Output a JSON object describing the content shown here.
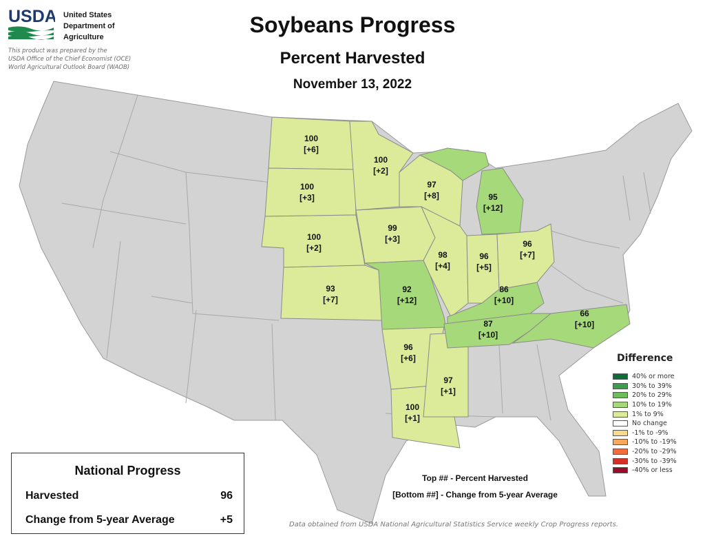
{
  "header": {
    "logo_text": "USDA",
    "agency_lines": [
      "United States",
      "Department of",
      "Agriculture"
    ],
    "prepared_lines": [
      "This product was prepared by the",
      "USDA Office of the Chief Economist (OCE)",
      "World Agricultural Outlook Board (WAOB)"
    ],
    "title": "Soybeans Progress",
    "subtitle": "Percent Harvested",
    "date": "November 13, 2022"
  },
  "states": [
    {
      "name": "ND",
      "top": "100",
      "bottom": "[+6]",
      "color": "#dbeb9a"
    },
    {
      "name": "SD",
      "top": "100",
      "bottom": "[+3]",
      "color": "#dbeb9a"
    },
    {
      "name": "NE",
      "top": "100",
      "bottom": "[+2]",
      "color": "#dbeb9a"
    },
    {
      "name": "KS",
      "top": "93",
      "bottom": "[+7]",
      "color": "#dbeb9a"
    },
    {
      "name": "MN",
      "top": "100",
      "bottom": "[+2]",
      "color": "#dbeb9a"
    },
    {
      "name": "IA",
      "top": "99",
      "bottom": "[+3]",
      "color": "#dbeb9a"
    },
    {
      "name": "MO",
      "top": "92",
      "bottom": "[+12]",
      "color": "#a6d97a"
    },
    {
      "name": "AR",
      "top": "96",
      "bottom": "[+6]",
      "color": "#dbeb9a"
    },
    {
      "name": "LA",
      "top": "100",
      "bottom": "[+1]",
      "color": "#dbeb9a"
    },
    {
      "name": "MS",
      "top": "97",
      "bottom": "[+1]",
      "color": "#dbeb9a"
    },
    {
      "name": "WI",
      "top": "97",
      "bottom": "[+8]",
      "color": "#dbeb9a"
    },
    {
      "name": "IL",
      "top": "98",
      "bottom": "[+4]",
      "color": "#dbeb9a"
    },
    {
      "name": "MI",
      "top": "95",
      "bottom": "[+12]",
      "color": "#a6d97a"
    },
    {
      "name": "IN",
      "top": "96",
      "bottom": "[+5]",
      "color": "#dbeb9a"
    },
    {
      "name": "OH",
      "top": "96",
      "bottom": "[+7]",
      "color": "#dbeb9a"
    },
    {
      "name": "KY",
      "top": "86",
      "bottom": "[+10]",
      "color": "#a6d97a"
    },
    {
      "name": "TN",
      "top": "87",
      "bottom": "[+10]",
      "color": "#a6d97a"
    },
    {
      "name": "NC",
      "top": "66",
      "bottom": "[+10]",
      "color": "#a6d97a"
    }
  ],
  "legend": {
    "title": "Difference",
    "items": [
      {
        "label": "40% or more",
        "color": "#0e6b3a"
      },
      {
        "label": "30% to 39%",
        "color": "#3a9e4c"
      },
      {
        "label": "20% to 29%",
        "color": "#6dbd5c"
      },
      {
        "label": "10% to 19%",
        "color": "#a6d97a"
      },
      {
        "label": "1% to 9%",
        "color": "#dbeb9a"
      },
      {
        "label": "No change",
        "color": "#ffffff"
      },
      {
        "label": "-1% to -9%",
        "color": "#fbd98a"
      },
      {
        "label": "-10% to -19%",
        "color": "#f7a85c"
      },
      {
        "label": "-20% to -29%",
        "color": "#ef6d3f"
      },
      {
        "label": "-30% to -39%",
        "color": "#d62f2a"
      },
      {
        "label": "-40% or less",
        "color": "#9b0c2b"
      }
    ]
  },
  "national": {
    "title": "National Progress",
    "rows": [
      {
        "label": "Harvested",
        "value": "96"
      },
      {
        "label": "Change from 5-year Average",
        "value": "+5"
      }
    ]
  },
  "key": {
    "line1": "Top ## - Percent Harvested",
    "line2": "[Bottom ##] - Change from 5-year Average"
  },
  "source": "Data obtained from USDA National Agricultural Statistics Service weekly Crop Progress reports."
}
